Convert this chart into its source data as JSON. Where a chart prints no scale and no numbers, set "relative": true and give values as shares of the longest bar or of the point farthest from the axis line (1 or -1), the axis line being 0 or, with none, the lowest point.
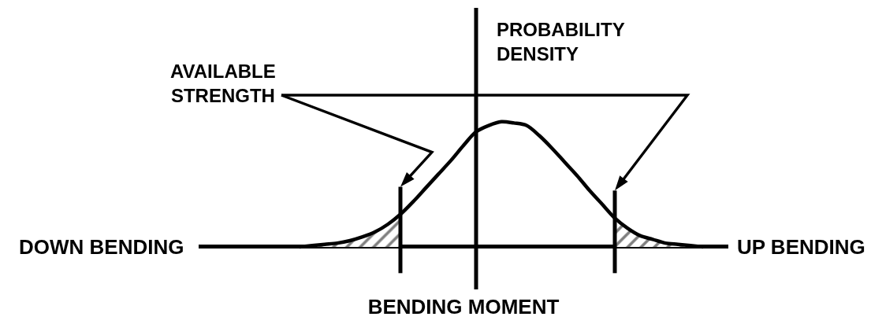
{
  "chart_data": {
    "type": "line",
    "relative": true,
    "xlabel": "BENDING MOMENT",
    "ylabel": "PROBABILITY\nDENSITY",
    "annotations": [
      "AVAILABLE\nSTRENGTH",
      "DOWN BENDING",
      "UP BENDING"
    ],
    "categories": [
      null,
      null,
      null,
      null,
      null,
      null,
      null,
      null,
      null,
      null,
      null,
      null,
      null,
      null,
      null,
      null,
      null,
      null,
      null,
      null,
      null,
      null,
      null,
      null,
      null,
      null,
      null,
      null,
      null,
      null,
      null,
      null,
      null,
      null,
      null,
      null,
      null,
      null,
      null,
      null,
      null,
      null,
      null
    ],
    "series": [
      {
        "type": "area",
        "color": "#000000",
        "values": [
          null,
          null,
          null,
          null,
          null,
          null,
          null,
          null,
          0,
          0.01,
          0.02,
          0.03,
          0.05,
          0.08,
          0.12,
          0.18,
          0.26,
          null,
          null,
          null,
          null,
          null,
          null,
          null,
          null,
          null,
          null,
          null,
          null,
          null,
          null,
          null,
          null,
          null,
          null,
          null,
          null,
          null,
          null,
          null,
          null,
          null,
          null
        ]
      },
      {
        "type": "area",
        "color": "#000000",
        "values": [
          null,
          null,
          null,
          null,
          null,
          null,
          null,
          null,
          null,
          null,
          null,
          null,
          null,
          null,
          null,
          null,
          null,
          null,
          null,
          null,
          null,
          null,
          null,
          null,
          null,
          null,
          null,
          null,
          null,
          null,
          null,
          null,
          null,
          0.23,
          0.15,
          0.09,
          0.06,
          0.03,
          0.02,
          0.01,
          0,
          null,
          null
        ]
      },
      {
        "color": "#000000",
        "values": [
          null,
          null,
          null,
          null,
          null,
          null,
          null,
          null,
          0,
          0.01,
          0.02,
          0.03,
          0.05,
          0.08,
          0.12,
          0.18,
          0.26,
          0.36,
          0.47,
          0.58,
          0.69,
          0.81,
          0.92,
          0.97,
          1,
          0.99,
          0.97,
          0.89,
          0.79,
          0.68,
          0.57,
          0.45,
          0.34,
          0.23,
          0.15,
          0.09,
          0.06,
          0.03,
          0.02,
          0.01,
          0,
          null,
          null
        ]
      }
    ]
  }
}
